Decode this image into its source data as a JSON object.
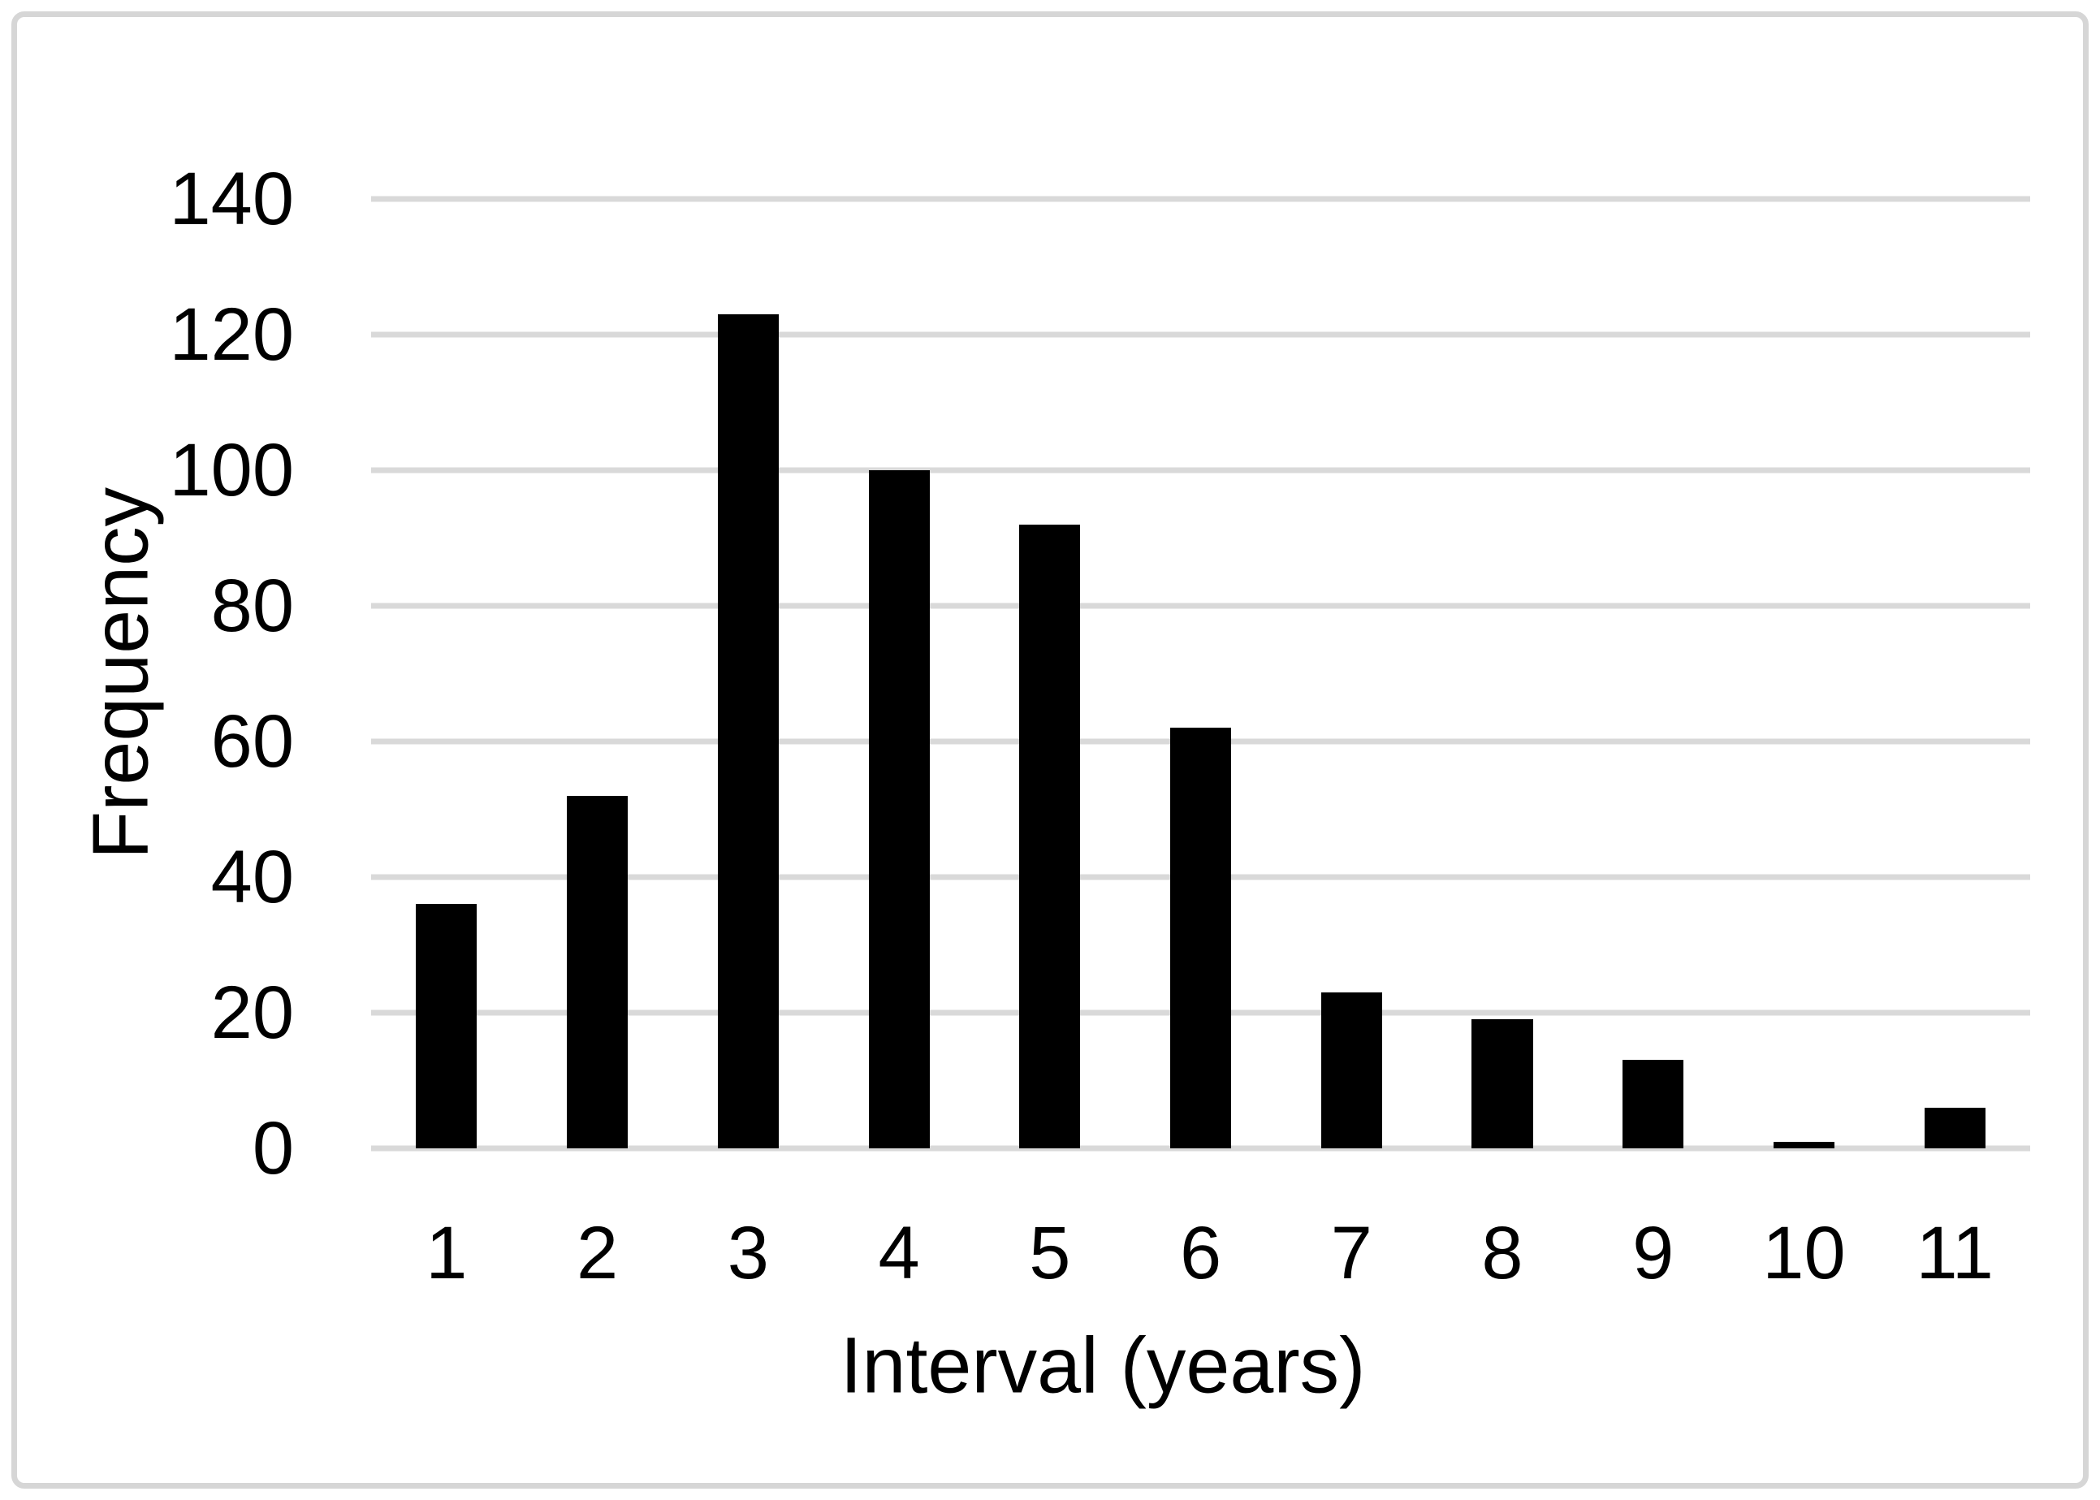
{
  "chart_data": {
    "type": "bar",
    "title": "",
    "categories": [
      "1",
      "2",
      "3",
      "4",
      "5",
      "6",
      "7",
      "8",
      "9",
      "10",
      "11"
    ],
    "values": [
      36,
      52,
      123,
      100,
      92,
      62,
      23,
      19,
      13,
      1,
      6
    ],
    "xlabel": "Interval (years)",
    "ylabel": "Frequency",
    "ylim": [
      0,
      140
    ],
    "yticks": [
      0,
      20,
      40,
      60,
      80,
      100,
      120,
      140
    ],
    "grid": true,
    "legend": false,
    "colors": {
      "bar": "#000000",
      "gridline": "#d9d9d9",
      "frame_border": "#d6d6d6",
      "text": "#000000",
      "background": "#ffffff"
    }
  }
}
